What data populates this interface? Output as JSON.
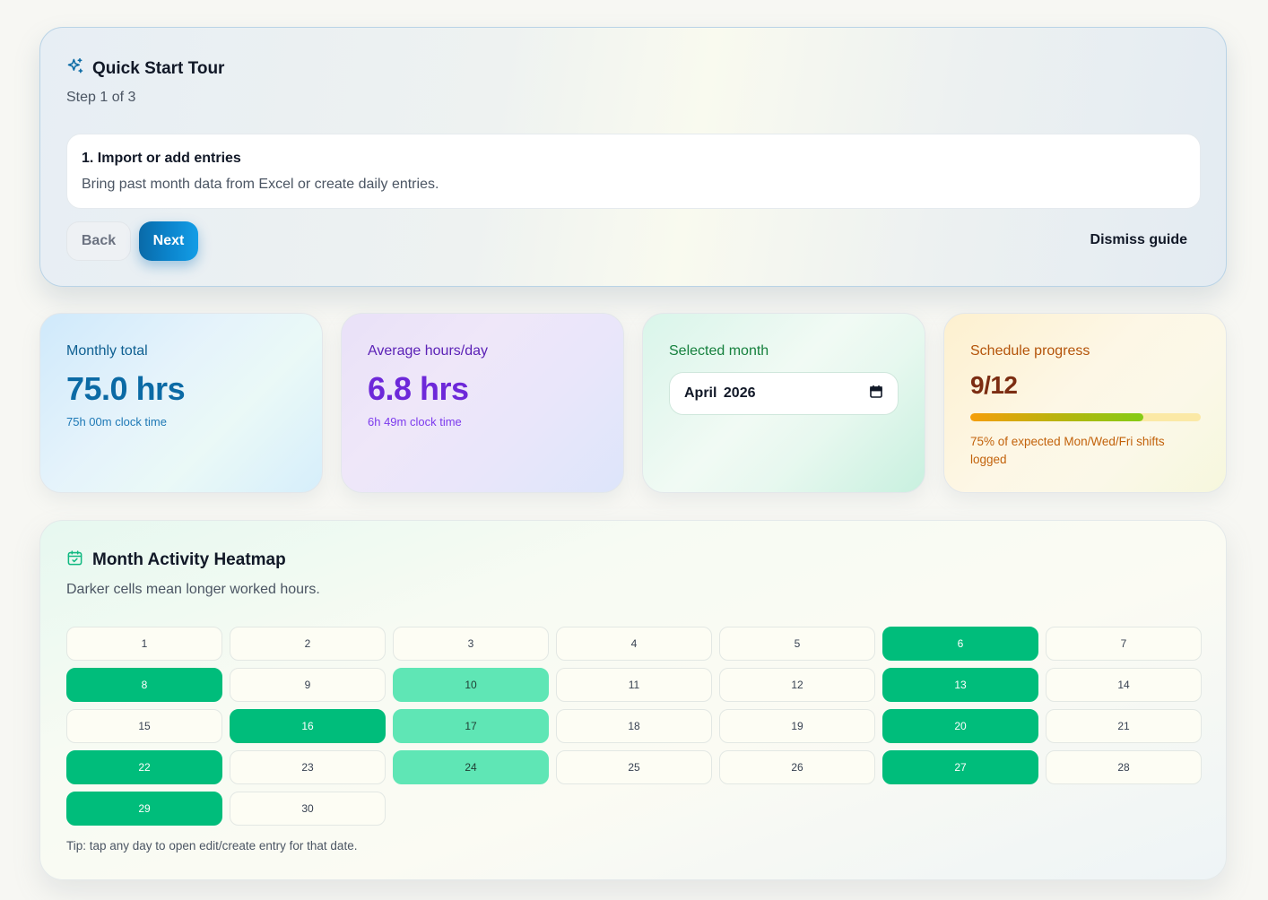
{
  "tour": {
    "title": "Quick Start Tour",
    "step": "Step 1 of 3",
    "step_title": "1. Import or add entries",
    "step_desc": "Bring past month data from Excel or create daily entries.",
    "back_label": "Back",
    "next_label": "Next",
    "dismiss_label": "Dismiss guide",
    "icon": "sparkles-icon"
  },
  "stats": {
    "monthly_total": {
      "label": "Monthly total",
      "value": "75.0 hrs",
      "sub": "75h 00m clock time"
    },
    "avg_hours": {
      "label": "Average hours/day",
      "value": "6.8 hrs",
      "sub": "6h 49m clock time"
    },
    "selected_month": {
      "label": "Selected month",
      "value": "April 2026",
      "icon": "calendar-icon"
    },
    "schedule": {
      "label": "Schedule progress",
      "value": "9/12",
      "progress": 0.75,
      "note": "75% of expected Mon/Wed/Fri shifts logged"
    }
  },
  "heatmap": {
    "title": "Month Activity Heatmap",
    "desc": "Darker cells mean longer worked hours.",
    "icon": "calendar-check-icon",
    "days": [
      {
        "day": "1",
        "level": 0
      },
      {
        "day": "2",
        "level": 0
      },
      {
        "day": "3",
        "level": 0
      },
      {
        "day": "4",
        "level": 0
      },
      {
        "day": "5",
        "level": 0
      },
      {
        "day": "6",
        "level": 3
      },
      {
        "day": "7",
        "level": 0
      },
      {
        "day": "8",
        "level": 3
      },
      {
        "day": "9",
        "level": 0
      },
      {
        "day": "10",
        "level": 2
      },
      {
        "day": "11",
        "level": 0
      },
      {
        "day": "12",
        "level": 0
      },
      {
        "day": "13",
        "level": 3
      },
      {
        "day": "14",
        "level": 0
      },
      {
        "day": "15",
        "level": 0
      },
      {
        "day": "16",
        "level": 3
      },
      {
        "day": "17",
        "level": 2
      },
      {
        "day": "18",
        "level": 0
      },
      {
        "day": "19",
        "level": 0
      },
      {
        "day": "20",
        "level": 3
      },
      {
        "day": "21",
        "level": 0
      },
      {
        "day": "22",
        "level": 3
      },
      {
        "day": "23",
        "level": 0
      },
      {
        "day": "24",
        "level": 2
      },
      {
        "day": "25",
        "level": 0
      },
      {
        "day": "26",
        "level": 0
      },
      {
        "day": "27",
        "level": 3
      },
      {
        "day": "28",
        "level": 0
      },
      {
        "day": "29",
        "level": 3
      },
      {
        "day": "30",
        "level": 0
      }
    ],
    "tip": "Tip: tap any day to open edit/create entry for that date."
  },
  "colors": {
    "accent": "#0b84cc",
    "heat_dark": "#00bd7b",
    "heat_mid": "#5fe6b5"
  }
}
